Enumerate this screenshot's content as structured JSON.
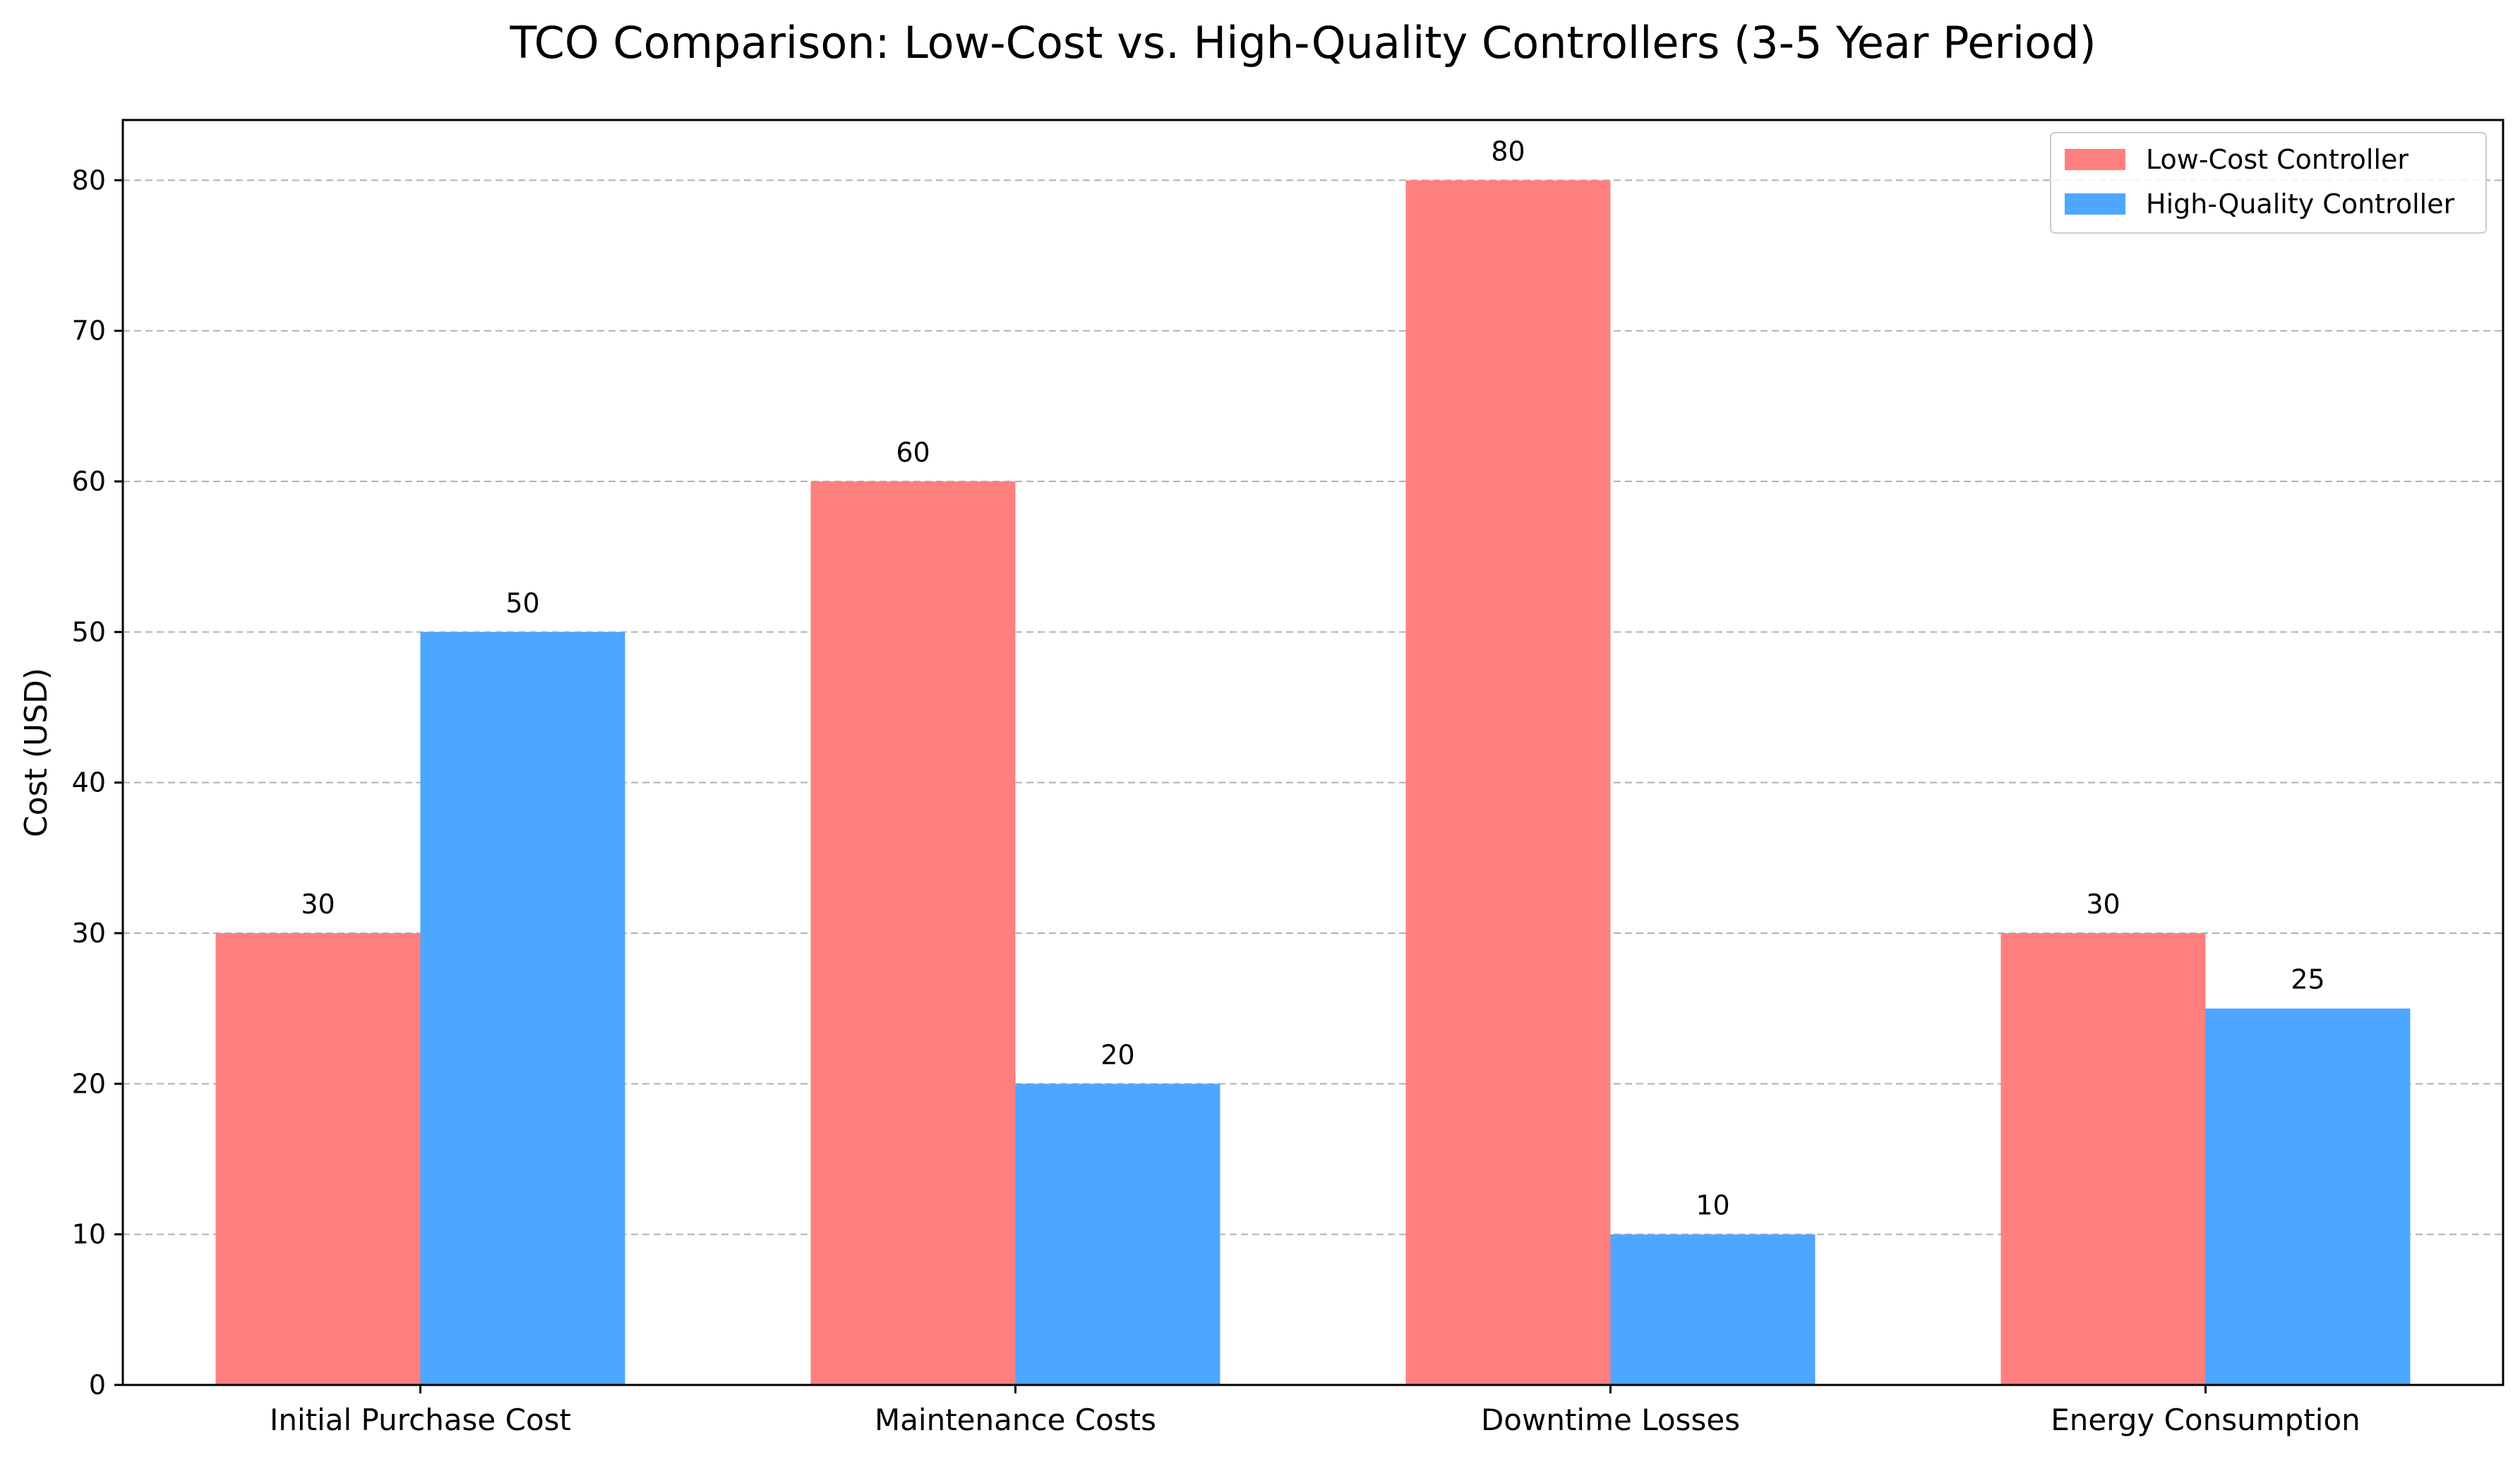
{
  "chart_data": {
    "type": "bar",
    "title": "TCO Comparison: Low-Cost vs. High-Quality Controllers (3-5 Year Period)",
    "xlabel": "",
    "ylabel": "Cost (USD)",
    "categories": [
      "Initial Purchase Cost",
      "Maintenance Costs",
      "Downtime Losses",
      "Energy Consumption"
    ],
    "series": [
      {
        "name": "Low-Cost Controller",
        "values": [
          30,
          60,
          80,
          30
        ],
        "color": "#ff7f7f"
      },
      {
        "name": "High-Quality Controller",
        "values": [
          50,
          20,
          10,
          25
        ],
        "color": "#4da6ff"
      }
    ],
    "ylim": [
      0,
      84
    ],
    "yticks": [
      0,
      10,
      20,
      30,
      40,
      50,
      60,
      70,
      80
    ],
    "grid": true,
    "grid_style": "dashed",
    "legend_position": "top-right",
    "data_labels": true
  }
}
